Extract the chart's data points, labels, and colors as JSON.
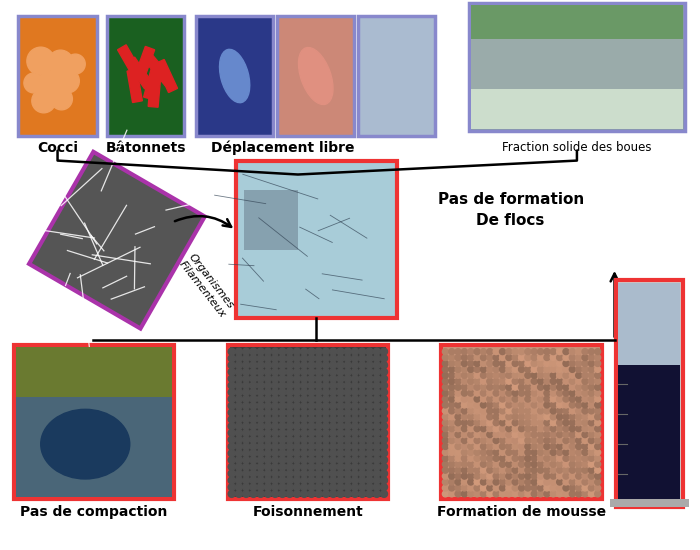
{
  "bg_color": "#ffffff",
  "label_cocci": "Cocci",
  "label_batonnets": "Bâtonnets",
  "label_deplacement": "Déplacement libre",
  "label_fraction": "Fraction solide des boues",
  "filamenteux_label": "Organismes\nFilamenteux",
  "pas_flocs_label": "Pas de formation\nDe flocs",
  "label_pas_compaction": "Pas de compaction",
  "label_foisonnement": "Foisonnement",
  "label_mousse": "Formation de mousse",
  "border_top": "#8888cc",
  "border_red": "#ee3333",
  "border_filamenteux": "#aa33aa",
  "arrow_color": "#111111",
  "cocci_color": "#e07820",
  "batonnets_bg": "#1a6020",
  "batonnets_rod": "#dd2222",
  "deplacement1_bg": "#2a3888",
  "deplacement2_bg": "#cc8877",
  "deplacement3_bg": "#aabbd0",
  "fraction_bg": "#8899aa",
  "filamenteux_bg": "#555555",
  "center_bg": "#a8ccd8",
  "compaction_bg": "#334455",
  "foisonnement_bg": "#3a3a3a",
  "mousse_bg": "#c8957a",
  "beaker_liquid": "#111133",
  "beaker_bg": "#cccccc",
  "label_fontsize": 10,
  "label_fontsize_small": 8.5
}
